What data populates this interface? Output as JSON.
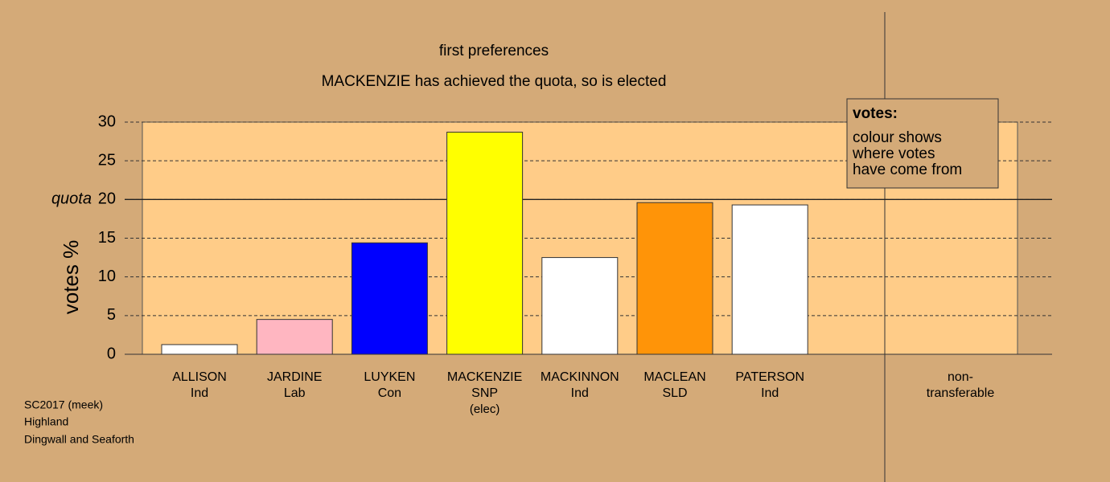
{
  "chart_data": {
    "type": "bar",
    "title": "first preferences",
    "subtitle": "MACKENZIE has achieved the quota, so is elected",
    "y_label": "votes %",
    "categories": [
      [
        "ALLISON",
        "Ind"
      ],
      [
        "JARDINE",
        "Lab"
      ],
      [
        "LUYKEN",
        "Con"
      ],
      [
        "MACKENZIE",
        "SNP",
        "(elec)"
      ],
      [
        "MACKINNON",
        "Ind"
      ],
      [
        "MACLEAN",
        "SLD"
      ],
      [
        "PATERSON",
        "Ind"
      ],
      [
        "non-",
        "transferable"
      ]
    ],
    "values": [
      1.25,
      4.5,
      14.4,
      28.7,
      12.5,
      19.6,
      19.3,
      null
    ],
    "colors": [
      "#ffffff",
      "#ffb6c1",
      "#0000ff",
      "#ffff00",
      "#ffffff",
      "#ff9408",
      "#ffffff",
      null
    ],
    "ylim": [
      0,
      30
    ],
    "yticks": [
      0,
      5,
      10,
      15,
      20,
      25,
      30
    ],
    "quota": {
      "value": 20,
      "label": "quota"
    },
    "legend": {
      "title": "votes:",
      "lines": [
        "colour shows",
        "where votes",
        "have come from"
      ]
    },
    "footer": [
      "SC2017 (meek)",
      "Highland",
      "Dingwall and Seaforth"
    ]
  }
}
